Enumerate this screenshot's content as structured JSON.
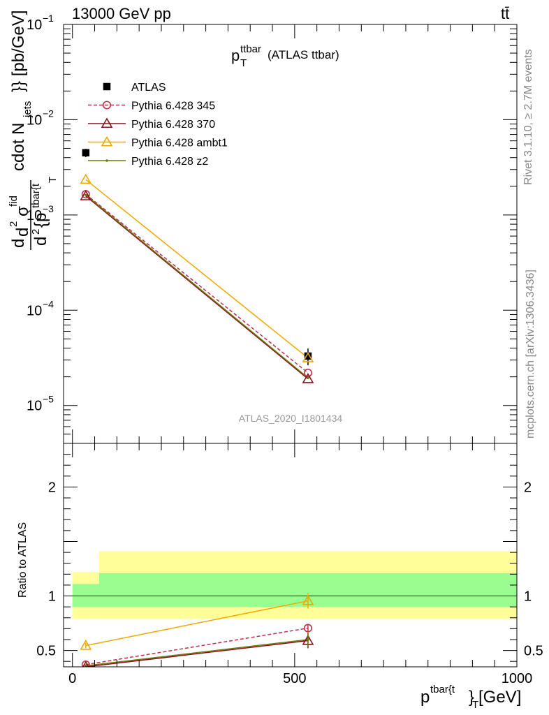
{
  "header": {
    "energy_label": "13000 GeV pp",
    "process_label": "tt̄"
  },
  "side_labels": {
    "rivet": "Rivet 3.1.10, ≥ 2.7M events",
    "source": "mcplots.cern.ch [arXiv:1306.3436]"
  },
  "chart_data": [
    {
      "type": "line",
      "title": "p_T^ttbar (ATLAS ttbar)",
      "title_main": "p",
      "title_sub": "T",
      "title_sup": "ttbar",
      "title_rest": "(ATLAS ttbar)",
      "watermark": "ATLAS_2020_I1801434",
      "ylabel": "d d²σ^{fid} / d² {p_T^{tbar{t}}} cdot N_{jets}}} [pb/GeV]",
      "ylabel_pieces": {
        "d": "d",
        "d2": "d",
        "two_top": "2",
        "sigma": "σ",
        "fid": "fid",
        "two_bottom": "2",
        "p_open": "{p",
        "tbar": "tbar{t",
        "T": "T",
        "rest": "cdot N",
        "jets": "jets",
        "close": "}} [pb/GeV]"
      },
      "yscale": "log",
      "ylim": [
        4e-06,
        0.1
      ],
      "xlim": [
        -20,
        1000
      ],
      "y_ticks": [
        {
          "value": 0.1,
          "base": "10",
          "exp": "−1"
        },
        {
          "value": 0.01,
          "base": "10",
          "exp": "−2"
        },
        {
          "value": 0.001,
          "base": "10",
          "exp": "−3"
        },
        {
          "value": 0.0001,
          "base": "10",
          "exp": "−4"
        },
        {
          "value": 1e-05,
          "base": "10",
          "exp": "−5"
        }
      ],
      "legend_position": "top-left",
      "series": [
        {
          "name": "ATLAS",
          "color": "#000000",
          "marker": "square",
          "dash": false,
          "x": [
            30,
            530
          ],
          "y": [
            0.0045,
            3.3e-05
          ],
          "yerr_rel": [
            0.1,
            0.2
          ]
        },
        {
          "name": "Pythia 6.428 345",
          "color": "#c0304a",
          "marker": "circle",
          "dash": true,
          "x": [
            30,
            530
          ],
          "y": [
            0.00165,
            2.2e-05
          ]
        },
        {
          "name": "Pythia 6.428 370",
          "color": "#8b1020",
          "marker": "triangle",
          "dash": false,
          "x": [
            30,
            530
          ],
          "y": [
            0.00158,
            1.9e-05
          ]
        },
        {
          "name": "Pythia 6.428 ambt1",
          "color": "#f0a800",
          "marker": "triangle",
          "dash": false,
          "x": [
            30,
            530
          ],
          "y": [
            0.00235,
            3.15e-05
          ]
        },
        {
          "name": "Pythia 6.428 z2",
          "color": "#6b7a0a",
          "marker": "dot",
          "dash": false,
          "x": [
            30,
            530
          ],
          "y": [
            0.00162,
            1.95e-05
          ]
        }
      ]
    },
    {
      "type": "line",
      "ylabel": "Ratio to ATLAS",
      "xlabel": "p^{tbar{t}}_T [GeV]",
      "xlabel_pieces": {
        "p": "p",
        "sup": "tbar{t",
        "close": "}",
        "sub": "T",
        "unit": "[GeV]"
      },
      "xlim": [
        -20,
        1000
      ],
      "ylim": [
        0.35,
        2.4
      ],
      "y_ticks": [
        0.5,
        1,
        2
      ],
      "x_ticks": [
        0,
        500,
        1000
      ],
      "bands": {
        "yellow": [
          {
            "x0": 0,
            "x1": 60,
            "lo": 0.79,
            "hi": 1.22
          },
          {
            "x0": 60,
            "x1": 1000,
            "lo": 0.79,
            "hi": 1.41
          }
        ],
        "green": [
          {
            "x0": 0,
            "x1": 60,
            "lo": 0.9,
            "hi": 1.11
          },
          {
            "x0": 60,
            "x1": 1000,
            "lo": 0.9,
            "hi": 1.21
          }
        ]
      },
      "series": [
        {
          "name": "Pythia 6.428 345",
          "color": "#c0304a",
          "marker": "circle",
          "dash": true,
          "x": [
            30,
            530
          ],
          "y": [
            0.37,
            0.705
          ],
          "yerr": [
            0,
            0.03
          ]
        },
        {
          "name": "Pythia 6.428 370",
          "color": "#8b1020",
          "marker": "triangle",
          "dash": false,
          "x": [
            30,
            530
          ],
          "y": [
            0.35,
            0.59
          ],
          "yerr": [
            0,
            0.07
          ]
        },
        {
          "name": "Pythia 6.428 ambt1",
          "color": "#f0a800",
          "marker": "triangle",
          "dash": false,
          "x": [
            30,
            530
          ],
          "y": [
            0.545,
            0.955
          ],
          "yerr": [
            0.025,
            0.07
          ]
        },
        {
          "name": "Pythia 6.428 z2",
          "color": "#6b7a0a",
          "marker": "dot",
          "dash": false,
          "x": [
            30,
            530
          ],
          "y": [
            0.36,
            0.6
          ],
          "yerr": [
            0,
            0.065
          ]
        }
      ]
    }
  ]
}
